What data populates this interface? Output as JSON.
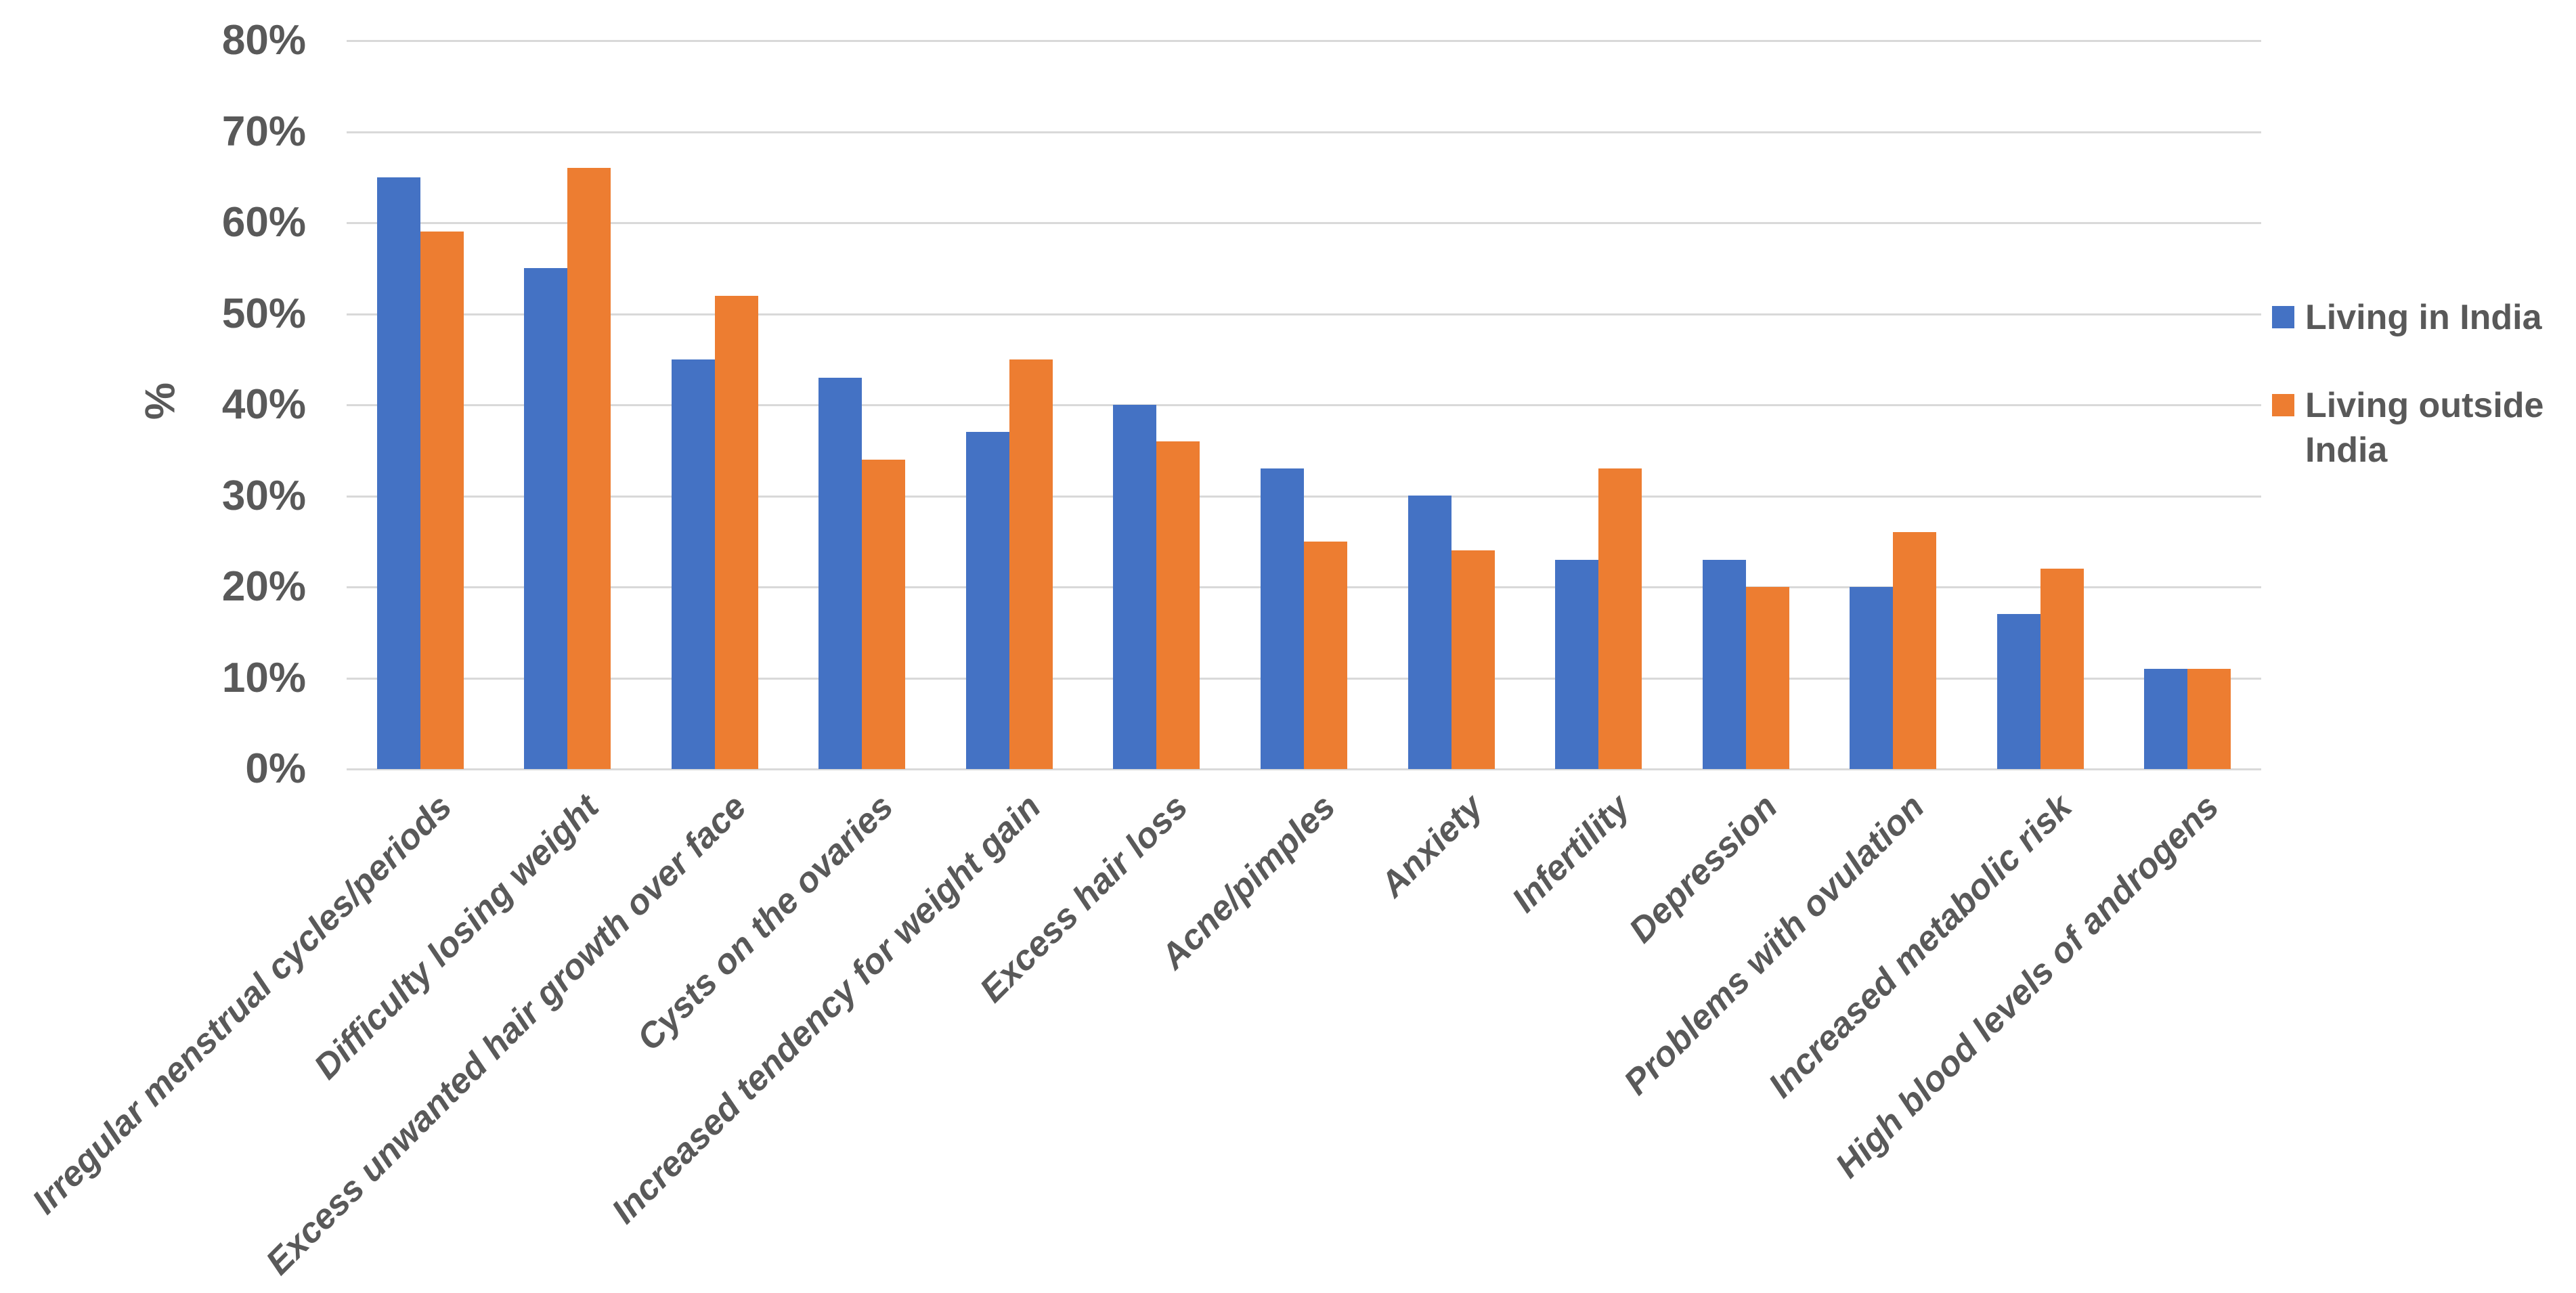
{
  "chart_data": {
    "type": "bar",
    "title": "",
    "ylabel": "%",
    "xlabel": "",
    "ylim": [
      0,
      80
    ],
    "ytick_step": 10,
    "yticks": [
      "0%",
      "10%",
      "20%",
      "30%",
      "40%",
      "50%",
      "60%",
      "70%",
      "80%"
    ],
    "grid": true,
    "legend_position": "right",
    "categories": [
      "Irregular menstrual cycles/periods",
      "Difficulty losing weight",
      "Excess unwanted hair growth over face",
      "Cysts on the ovaries",
      "Increased tendency for weight gain",
      "Excess hair loss",
      "Acne/pimples",
      "Anxiety",
      "Infertility",
      "Depression",
      "Problems with ovulation",
      "Increased metabolic risk",
      "High blood levels of androgens"
    ],
    "series": [
      {
        "name": "Living in India",
        "color": "#4472C4",
        "values": [
          65,
          55,
          45,
          43,
          37,
          40,
          33,
          30,
          23,
          23,
          20,
          17,
          11
        ]
      },
      {
        "name": "Living outside India",
        "color": "#ED7D31",
        "values": [
          59,
          66,
          52,
          34,
          45,
          36,
          25,
          24,
          33,
          20,
          26,
          22,
          11
        ]
      }
    ]
  },
  "colors": {
    "gridline": "#D9D9D9",
    "text": "#595959",
    "background": "#FFFFFF",
    "series_blue": "#4472C4",
    "series_orange": "#ED7D31"
  }
}
